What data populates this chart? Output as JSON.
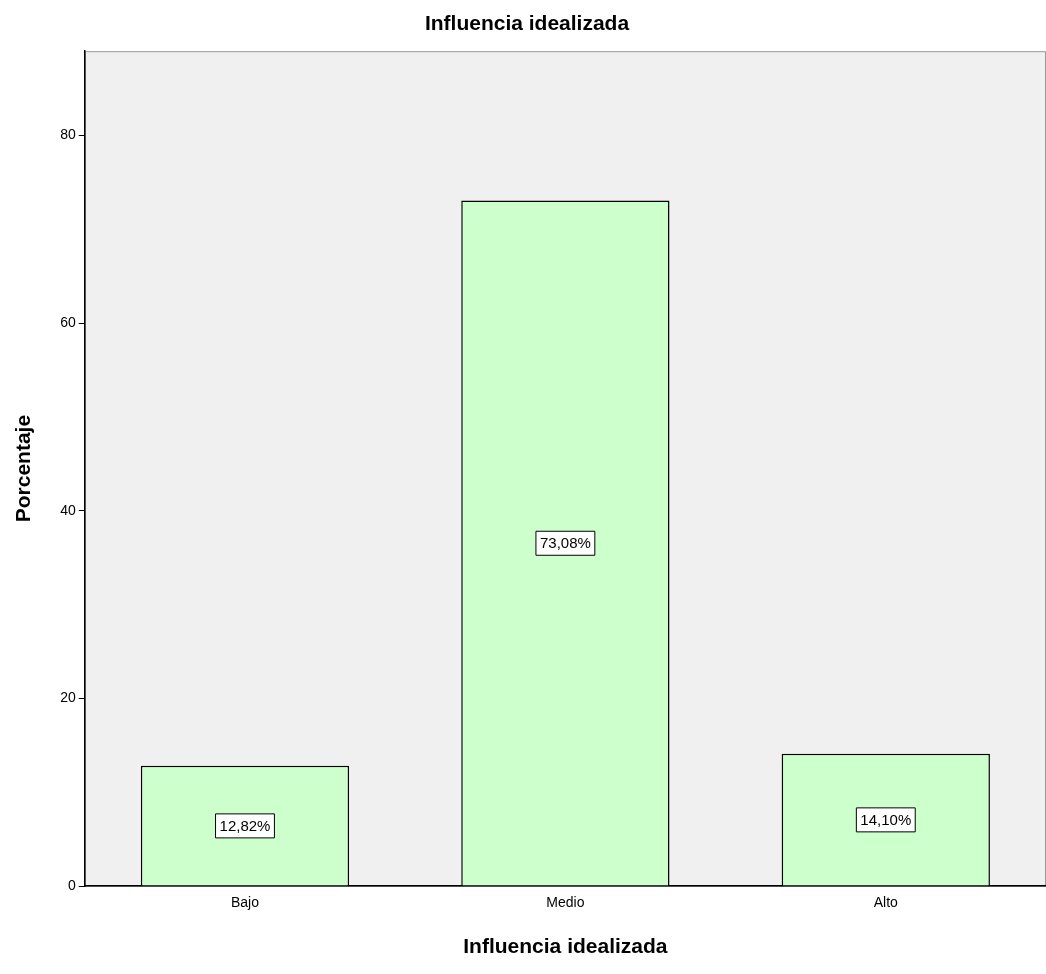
{
  "chart_data": {
    "type": "bar",
    "title": "Influencia idealizada",
    "xlabel": "Influencia idealizada",
    "ylabel": "Porcentaje",
    "categories": [
      "Bajo",
      "Medio",
      "Alto"
    ],
    "values": [
      12.82,
      73.08,
      14.1
    ],
    "color": "#ccffcc",
    "value_labels": [
      "12,82%",
      "73,08%",
      "14,10%"
    ],
    "ylim": [
      0,
      89
    ],
    "yticks": [
      0,
      20,
      40,
      60,
      80
    ],
    "grid": false,
    "legend": false
  }
}
